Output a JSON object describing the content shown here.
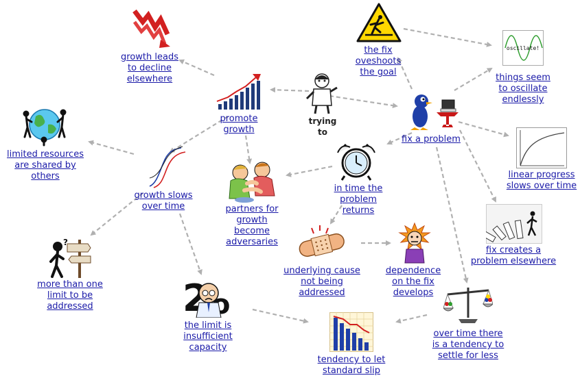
{
  "nodes": {
    "trying": "trying\nto",
    "fix_problem": "fix a problem",
    "fix_overshoots": "the fix\noveshoots\nthe goal",
    "oscillate": "things seem\nto oscillate\nendlessly",
    "oscillate_plot_title": "oscillate!",
    "linear_progress": "linear progress\nslows over time",
    "fix_elsewhere": "fix creates a\nproblem elsewhere",
    "in_time": "in time the\nproblem\nreturns",
    "underlying": "underlying cause\nnot being\naddressed",
    "dependence": "dependence\non the fix\ndevelops",
    "settle_less": "over time there\nis a tendency to\nsettle for less",
    "standard_slip": "tendency to let\nstandard slip",
    "limit_capacity": "the limit is\ninsufficient\ncapacity",
    "more_than_one": "more than one\nlimit to be\naddressed",
    "limited_resources": "limited resources\nare shared by\nothers",
    "growth_slows": "growth slows\nover time",
    "partners": "partners for\ngrowth\nbecome\nadversaries",
    "promote_growth": "promote\ngrowth",
    "growth_decline": "growth leads\nto decline\nelsewhere"
  },
  "colors": {
    "link": "#1a1aa8",
    "arrow": "#b0b0b0",
    "bar_blue": "#1f3fa8",
    "red": "#d22020",
    "yellow": "#ffd800"
  }
}
